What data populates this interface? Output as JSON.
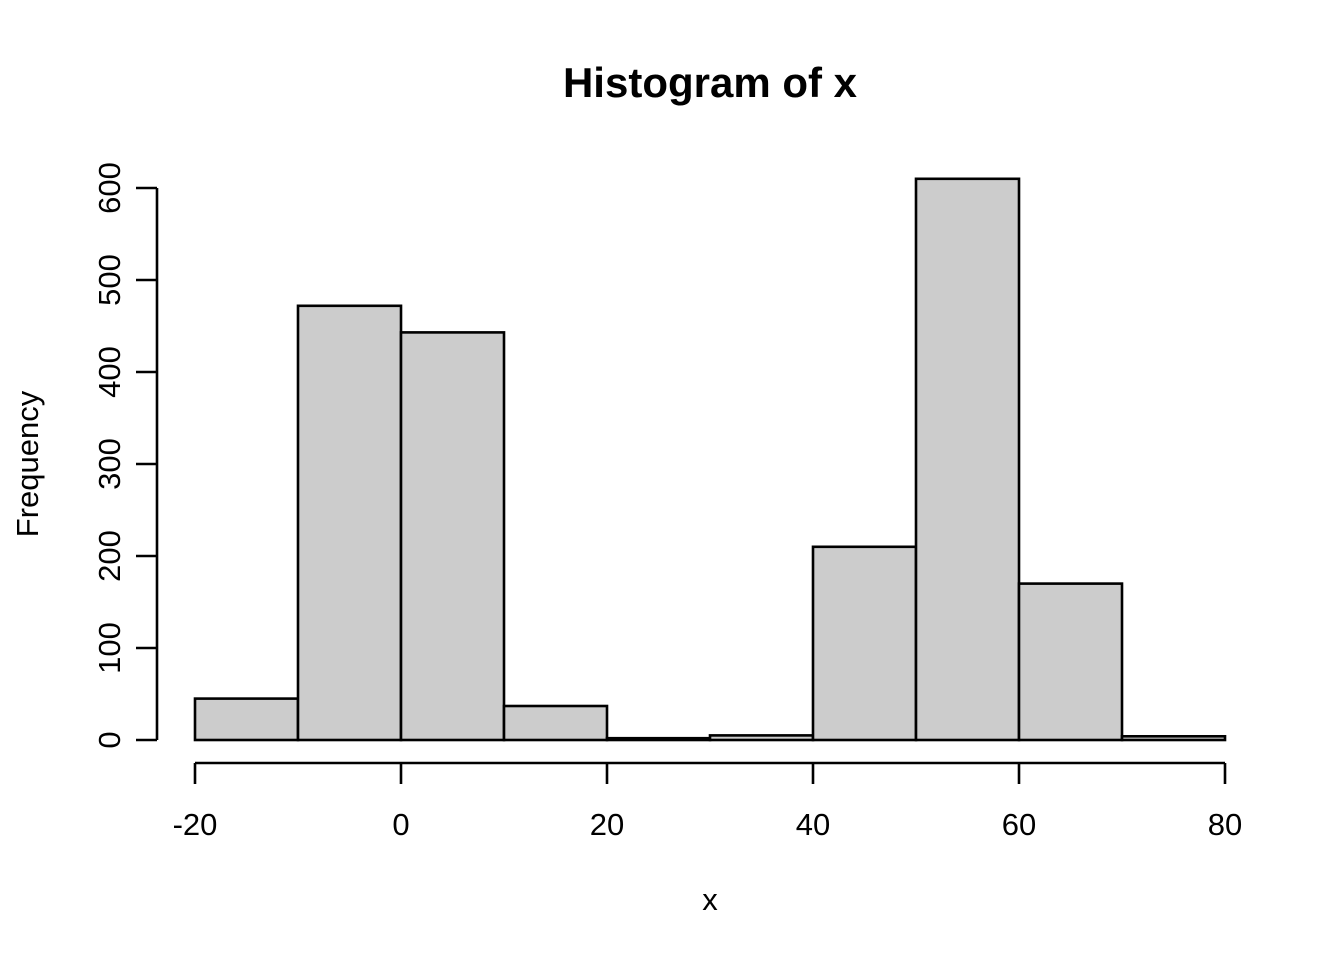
{
  "figure": {
    "title": "Histogram of x",
    "x_axis_label": "x",
    "y_axis_label": "Frequency"
  },
  "chart_data": {
    "type": "bar",
    "subtype": "histogram",
    "title": "Histogram of x",
    "xlabel": "x",
    "ylabel": "Frequency",
    "bin_edges": [
      -20,
      -10,
      0,
      10,
      20,
      30,
      40,
      50,
      60,
      70,
      80
    ],
    "counts": [
      45,
      472,
      443,
      37,
      2,
      5,
      210,
      610,
      170,
      4
    ],
    "x_ticks": [
      -20,
      0,
      20,
      40,
      60,
      80
    ],
    "y_ticks": [
      0,
      100,
      200,
      300,
      400,
      500,
      600
    ],
    "xlim": [
      -20,
      80
    ],
    "ylim": [
      0,
      610
    ],
    "grid": false,
    "legend": "none",
    "bar_fill": "#cccccc",
    "bar_stroke": "#000000",
    "axis_color": "#000000",
    "background": "#ffffff"
  }
}
